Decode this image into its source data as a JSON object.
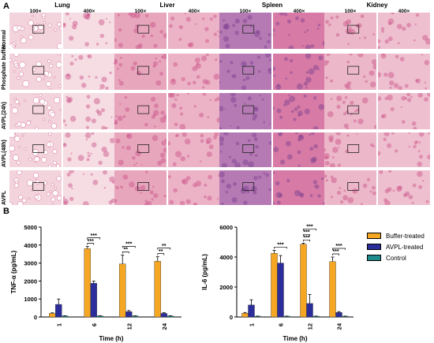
{
  "panel_a": {
    "letter": "A",
    "organs": [
      "Lung",
      "Liver",
      "Spleen",
      "Kidney"
    ],
    "magnifications": [
      "100×",
      "400×"
    ],
    "rows": [
      "Normal",
      "Phosphate buffer",
      "AVPL(24h)",
      "AVPL(48h)",
      "AVPL"
    ]
  },
  "panel_b": {
    "letter": "B",
    "legend": [
      {
        "label": "Buffer-treated",
        "color": "#F5A623"
      },
      {
        "label": "AVPL-treated",
        "color": "#2B2D9A"
      },
      {
        "label": "Control",
        "color": "#1E8C8C"
      }
    ]
  },
  "chart_data": [
    {
      "type": "bar",
      "ylabel": "TNF-α (pg/mL)",
      "xlabel": "Time  (h)",
      "categories": [
        "1",
        "6",
        "12",
        "24"
      ],
      "ylim": [
        0,
        5000
      ],
      "yticks": [
        "0",
        "1000",
        "2000",
        "3000",
        "4000",
        "5000"
      ],
      "series": [
        {
          "name": "Buffer-treated",
          "values": [
            200,
            3800,
            2950,
            3100
          ],
          "errors": [
            30,
            120,
            500,
            250
          ]
        },
        {
          "name": "AVPL-treated",
          "values": [
            700,
            1880,
            300,
            200
          ],
          "errors": [
            300,
            120,
            60,
            40
          ]
        },
        {
          "name": "Control",
          "values": [
            60,
            60,
            60,
            60
          ],
          "errors": [
            10,
            10,
            10,
            10
          ]
        }
      ],
      "significance": [
        {
          "category": 1,
          "from": 0,
          "to": 1,
          "label": "***"
        },
        {
          "category": 1,
          "from": 0,
          "to": 2,
          "label": "***"
        },
        {
          "category": 2,
          "from": 0,
          "to": 1,
          "label": "**"
        },
        {
          "category": 2,
          "from": 0,
          "to": 2,
          "label": "***"
        },
        {
          "category": 3,
          "from": 0,
          "to": 1,
          "label": "**"
        },
        {
          "category": 3,
          "from": 0,
          "to": 2,
          "label": "**"
        }
      ]
    },
    {
      "type": "bar",
      "ylabel": "IL-6 (pg/mL)",
      "xlabel": "Time  (h)",
      "categories": [
        "1",
        "6",
        "12",
        "24"
      ],
      "ylim": [
        0,
        6000
      ],
      "yticks": [
        "0",
        "2000",
        "4000",
        "6000"
      ],
      "series": [
        {
          "name": "Buffer-treated",
          "values": [
            250,
            4250,
            4850,
            3700
          ],
          "errors": [
            50,
            200,
            80,
            300
          ]
        },
        {
          "name": "AVPL-treated",
          "values": [
            800,
            3600,
            900,
            300
          ],
          "errors": [
            350,
            500,
            600,
            60
          ]
        },
        {
          "name": "Control",
          "values": [
            50,
            50,
            50,
            50
          ],
          "errors": [
            10,
            10,
            10,
            10
          ]
        }
      ],
      "significance": [
        {
          "category": 1,
          "from": 0,
          "to": 2,
          "label": "***"
        },
        {
          "category": 2,
          "from": 0,
          "to": 1,
          "label": "***"
        },
        {
          "category": 2,
          "from": 0,
          "to": 1,
          "label": "***"
        },
        {
          "category": 2,
          "from": 0,
          "to": 2,
          "label": "***"
        },
        {
          "category": 3,
          "from": 0,
          "to": 1,
          "label": "***"
        },
        {
          "category": 3,
          "from": 0,
          "to": 2,
          "label": "***"
        }
      ]
    }
  ]
}
